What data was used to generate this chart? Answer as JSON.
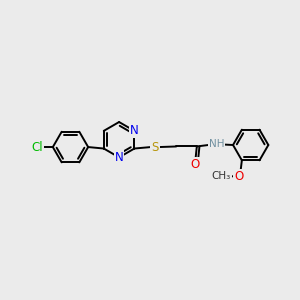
{
  "bg_color": "#ebebeb",
  "bond_color": "#000000",
  "atom_colors": {
    "N": "#0000ee",
    "S": "#b8960c",
    "O": "#ee0000",
    "Cl": "#00bb00",
    "H": "#7090a0",
    "C": "#000000"
  },
  "bond_width": 1.4,
  "font_size_atom": 8.5,
  "font_size_small": 7.5
}
